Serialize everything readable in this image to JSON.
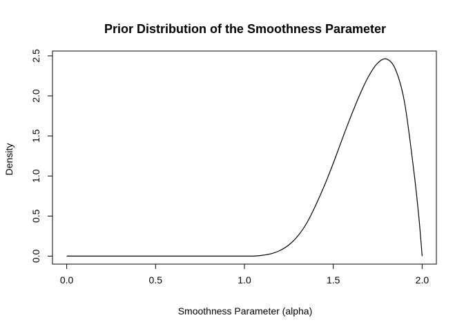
{
  "chart_data": {
    "type": "line",
    "title": "Prior Distribution of the Smoothness Parameter",
    "xlabel": "Smoothness Parameter (alpha)",
    "ylabel": "Density",
    "xlim": [
      -0.08,
      2.08
    ],
    "ylim": [
      -0.1,
      2.56
    ],
    "x_ticks": [
      0.0,
      0.5,
      1.0,
      1.5,
      2.0
    ],
    "x_tick_labels": [
      "0.0",
      "0.5",
      "1.0",
      "1.5",
      "2.0"
    ],
    "y_ticks": [
      0.0,
      0.5,
      1.0,
      1.5,
      2.0,
      2.5
    ],
    "y_tick_labels": [
      "0.0",
      "0.5",
      "1.0",
      "1.5",
      "2.0",
      "2.5"
    ],
    "grid": false,
    "legend": "none",
    "line_color": "#000000",
    "series": [
      {
        "x": [
          0.0,
          0.5,
          1.0,
          1.05,
          1.1,
          1.15,
          1.2,
          1.25,
          1.3,
          1.35,
          1.4,
          1.45,
          1.5,
          1.55,
          1.6,
          1.65,
          1.7,
          1.75,
          1.8,
          1.85,
          1.9,
          1.95,
          1.98,
          2.0
        ],
        "y": [
          0.0,
          0.0,
          0.0,
          0.0,
          0.01,
          0.03,
          0.07,
          0.14,
          0.25,
          0.41,
          0.63,
          0.88,
          1.16,
          1.46,
          1.75,
          2.02,
          2.25,
          2.41,
          2.46,
          2.33,
          1.93,
          1.12,
          0.52,
          0.0
        ]
      }
    ]
  }
}
